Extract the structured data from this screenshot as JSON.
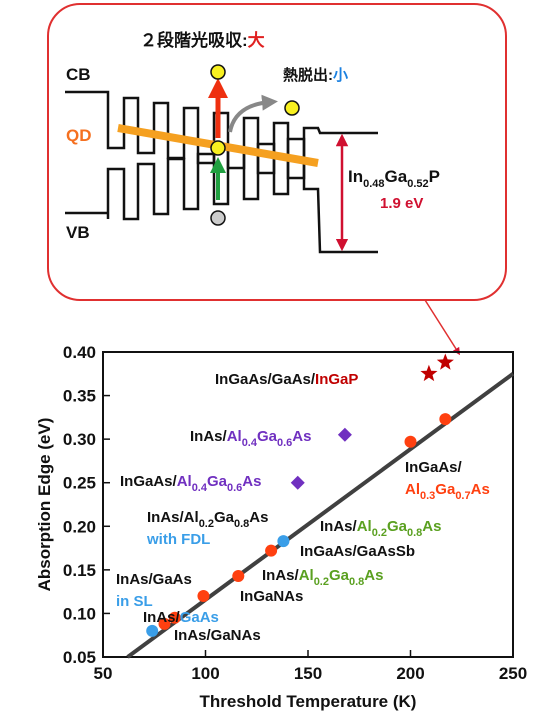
{
  "diagram": {
    "title": [
      "２段階光吸収:",
      "大"
    ],
    "escape": [
      "熱脱出:",
      "小"
    ],
    "cb": "CB",
    "qd": "QD",
    "vb": "VB",
    "barrier": [
      "In",
      "0.48",
      "Ga",
      "0.52",
      "P"
    ],
    "gap": "1.9 eV"
  },
  "chart_data": {
    "type": "scatter",
    "x_label": "Threshold Temperature (K)",
    "y_label": "Absorption Edge (eV)",
    "xlim": [
      50,
      250
    ],
    "ylim": [
      0.05,
      0.4
    ],
    "xticks": [
      50,
      100,
      150,
      200,
      250
    ],
    "yticks": [
      0.05,
      {
        "value": 0.1,
        "label": "0.10"
      },
      0.15,
      {
        "value": 0.2,
        "label": "0.20"
      },
      0.25,
      {
        "value": 0.3,
        "label": "0.30"
      },
      0.35,
      {
        "value": 0.4,
        "label": "0.40"
      }
    ],
    "series": [
      {
        "type": "line",
        "color": "#404040",
        "x": [
          62,
          250
        ],
        "values": [
          0.05,
          0.375
        ]
      },
      {
        "marker": "circle",
        "color": "#ff4010",
        "x": [
          80,
          85,
          99,
          116,
          132,
          200,
          217
        ],
        "values": [
          0.088,
          0.095,
          0.12,
          0.143,
          0.172,
          0.297,
          0.323
        ]
      },
      {
        "marker": "circle",
        "color": "#3a9ee8",
        "x": [
          74,
          138
        ],
        "values": [
          0.08,
          0.183
        ]
      },
      {
        "marker": "diamond",
        "color": "#7030c0",
        "x": [
          145,
          168
        ],
        "values": [
          0.25,
          0.305
        ]
      },
      {
        "marker": "star",
        "color": "#c00000",
        "x": [
          209,
          217
        ],
        "values": [
          0.375,
          0.388
        ]
      }
    ],
    "annotations": [
      {
        "lines": [
          [
            {
              "text": "InGaAs/GaAs/"
            },
            {
              "text": "InGaP",
              "color": "#c00000"
            }
          ]
        ]
      },
      {
        "lines": [
          [
            {
              "text": "InAs/"
            },
            {
              "text": "Al",
              "color": "#7030c0"
            },
            {
              "text": "0.4",
              "color": "#7030c0",
              "sub": true
            },
            {
              "text": "Ga",
              "color": "#7030c0"
            },
            {
              "text": "0.6",
              "color": "#7030c0",
              "sub": true
            },
            {
              "text": "As",
              "color": "#7030c0"
            }
          ]
        ]
      },
      {
        "lines": [
          [
            {
              "text": "InGaAs/"
            },
            {
              "text": "Al",
              "color": "#7030c0"
            },
            {
              "text": "0.4",
              "color": "#7030c0",
              "sub": true
            },
            {
              "text": "Ga",
              "color": "#7030c0"
            },
            {
              "text": "0.6",
              "color": "#7030c0",
              "sub": true
            },
            {
              "text": "As",
              "color": "#7030c0"
            }
          ]
        ]
      },
      {
        "lines": [
          [
            {
              "text": "InGaAs/"
            }
          ],
          [
            {
              "text": "Al",
              "color": "#ff4010"
            },
            {
              "text": "0.3",
              "color": "#ff4010",
              "sub": true
            },
            {
              "text": "Ga",
              "color": "#ff4010"
            },
            {
              "text": "0.7",
              "color": "#ff4010",
              "sub": true
            },
            {
              "text": "As",
              "color": "#ff4010"
            }
          ]
        ]
      },
      {
        "lines": [
          [
            {
              "text": "InAs/Al"
            },
            {
              "text": "0.2",
              "sub": true
            },
            {
              "text": "Ga"
            },
            {
              "text": "0.8",
              "sub": true
            },
            {
              "text": "As"
            }
          ],
          [
            {
              "text": "with FDL",
              "color": "#3a9ee8"
            }
          ]
        ]
      },
      {
        "lines": [
          [
            {
              "text": "InAs/"
            },
            {
              "text": "Al",
              "color": "#5aa020"
            },
            {
              "text": "0.2",
              "color": "#5aa020",
              "sub": true
            },
            {
              "text": "Ga",
              "color": "#5aa020"
            },
            {
              "text": "0.8",
              "color": "#5aa020",
              "sub": true
            },
            {
              "text": "As",
              "color": "#5aa020"
            }
          ]
        ]
      },
      {
        "lines": [
          [
            {
              "text": "InGaAs/GaAsSb"
            }
          ]
        ]
      },
      {
        "lines": [
          [
            {
              "text": "InAs/"
            },
            {
              "text": "Al",
              "color": "#5aa020"
            },
            {
              "text": "0.2",
              "color": "#5aa020",
              "sub": true
            },
            {
              "text": "Ga",
              "color": "#5aa020"
            },
            {
              "text": "0.8",
              "color": "#5aa020",
              "sub": true
            },
            {
              "text": "As",
              "color": "#5aa020"
            }
          ]
        ]
      },
      {
        "lines": [
          [
            {
              "text": "InGaNAs"
            }
          ]
        ]
      },
      {
        "lines": [
          [
            {
              "text": "InAs/GaAs"
            }
          ],
          [
            {
              "text": "in SL",
              "color": "#3a9ee8"
            }
          ]
        ]
      },
      {
        "lines": [
          [
            {
              "text": "InAs/"
            },
            {
              "text": "GaAs",
              "color": "#3a9ee8"
            }
          ]
        ]
      },
      {
        "lines": [
          [
            {
              "text": "InAs/GaNAs"
            }
          ]
        ]
      }
    ]
  }
}
